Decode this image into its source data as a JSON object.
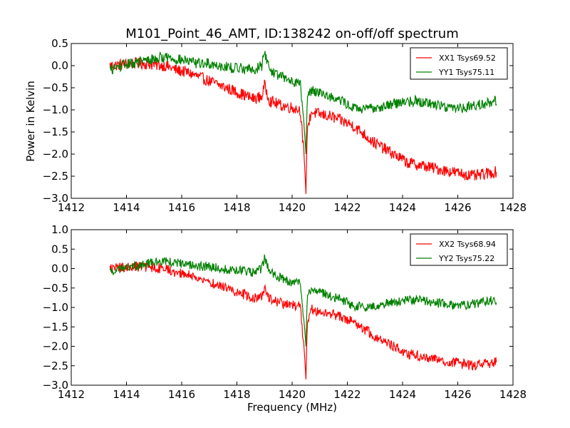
{
  "figure": {
    "title": "M101_Point_46_AMT, ID:138242 on-off/off spectrum",
    "xlabel": "Frequency (MHz)",
    "ylabel": "Power in Kelvin"
  },
  "colors": {
    "red": "#ff0000",
    "green": "#008000",
    "axes": "#000000"
  },
  "chart_data": [
    {
      "type": "line",
      "title": "M101_Point_46_AMT, ID:138242 on-off/off spectrum",
      "xlabel": "",
      "ylabel": "Power in Kelvin",
      "xlim": [
        1412,
        1428
      ],
      "ylim": [
        -3.0,
        0.5
      ],
      "xticks": [
        1412,
        1414,
        1416,
        1418,
        1420,
        1422,
        1424,
        1426,
        1428
      ],
      "yticks": [
        0.5,
        0.0,
        -0.5,
        -1.0,
        -1.5,
        -2.0,
        -2.5,
        -3.0
      ],
      "xtick_labels": [
        "1412",
        "1414",
        "1416",
        "1418",
        "1420",
        "1422",
        "1424",
        "1426",
        "1428"
      ],
      "ytick_labels": [
        "0.5",
        "0.0",
        "−0.5",
        "−1.0",
        "−1.5",
        "−2.0",
        "−2.5",
        "−3.0"
      ],
      "grid": false,
      "legend_position": "top-right",
      "series": [
        {
          "name": "XX1 Tsys69.52",
          "color": "#ff0000",
          "x": [
            1413.4,
            1413.8,
            1414.2,
            1414.6,
            1415.0,
            1415.4,
            1415.8,
            1416.2,
            1416.6,
            1417.0,
            1417.4,
            1417.8,
            1418.2,
            1418.6,
            1418.9,
            1419.0,
            1419.2,
            1419.6,
            1420.0,
            1420.3,
            1420.45,
            1420.5,
            1420.55,
            1420.7,
            1421.0,
            1421.4,
            1421.8,
            1422.2,
            1422.6,
            1423.0,
            1423.4,
            1423.8,
            1424.2,
            1424.6,
            1425.0,
            1425.4,
            1425.8,
            1426.2,
            1426.6,
            1427.0,
            1427.4
          ],
          "y": [
            0.0,
            0.02,
            0.05,
            0.05,
            0.02,
            0.0,
            -0.1,
            -0.15,
            -0.25,
            -0.35,
            -0.45,
            -0.55,
            -0.65,
            -0.75,
            -0.7,
            -0.45,
            -0.8,
            -0.9,
            -0.95,
            -1.0,
            -2.2,
            -2.9,
            -1.4,
            -1.05,
            -1.1,
            -1.15,
            -1.25,
            -1.35,
            -1.55,
            -1.75,
            -1.9,
            -2.05,
            -2.2,
            -2.25,
            -2.3,
            -2.35,
            -2.4,
            -2.45,
            -2.5,
            -2.45,
            -2.4
          ]
        },
        {
          "name": "YY1 Tsys75.11",
          "color": "#008000",
          "x": [
            1413.4,
            1413.8,
            1414.2,
            1414.6,
            1415.0,
            1415.4,
            1415.8,
            1416.2,
            1416.6,
            1417.0,
            1417.4,
            1417.8,
            1418.2,
            1418.6,
            1418.9,
            1419.0,
            1419.2,
            1419.6,
            1420.0,
            1420.3,
            1420.45,
            1420.5,
            1420.55,
            1420.7,
            1421.0,
            1421.4,
            1421.8,
            1422.2,
            1422.6,
            1423.0,
            1423.4,
            1423.8,
            1424.2,
            1424.6,
            1425.0,
            1425.4,
            1425.8,
            1426.2,
            1426.6,
            1427.0,
            1427.4
          ],
          "y": [
            -0.1,
            0.0,
            0.05,
            0.1,
            0.15,
            0.2,
            0.15,
            0.1,
            0.05,
            0.05,
            0.0,
            -0.05,
            -0.05,
            -0.1,
            0.0,
            0.3,
            -0.1,
            -0.25,
            -0.35,
            -0.4,
            -1.5,
            -2.0,
            -0.7,
            -0.55,
            -0.6,
            -0.7,
            -0.8,
            -0.95,
            -1.0,
            -0.95,
            -0.9,
            -0.85,
            -0.8,
            -0.8,
            -0.85,
            -0.9,
            -0.95,
            -0.95,
            -0.9,
            -0.85,
            -0.8
          ]
        }
      ]
    },
    {
      "type": "line",
      "title": "",
      "xlabel": "Frequency (MHz)",
      "ylabel": "",
      "xlim": [
        1412,
        1428
      ],
      "ylim": [
        -3.0,
        1.0
      ],
      "xticks": [
        1412,
        1414,
        1416,
        1418,
        1420,
        1422,
        1424,
        1426,
        1428
      ],
      "yticks": [
        1.0,
        0.5,
        0.0,
        -0.5,
        -1.0,
        -1.5,
        -2.0,
        -2.5,
        -3.0
      ],
      "xtick_labels": [
        "1412",
        "1414",
        "1416",
        "1418",
        "1420",
        "1422",
        "1424",
        "1426",
        "1428"
      ],
      "ytick_labels": [
        "1.0",
        "0.5",
        "0.0",
        "−0.5",
        "−1.0",
        "−1.5",
        "−2.0",
        "−2.5",
        "−3.0"
      ],
      "grid": false,
      "legend_position": "top-right",
      "series": [
        {
          "name": "XX2 Tsys68.94",
          "color": "#ff0000",
          "x": [
            1413.4,
            1413.8,
            1414.2,
            1414.6,
            1415.0,
            1415.4,
            1415.8,
            1416.2,
            1416.6,
            1417.0,
            1417.4,
            1417.8,
            1418.2,
            1418.6,
            1418.9,
            1419.0,
            1419.2,
            1419.6,
            1420.0,
            1420.3,
            1420.45,
            1420.5,
            1420.55,
            1420.7,
            1421.0,
            1421.4,
            1421.8,
            1422.2,
            1422.6,
            1423.0,
            1423.4,
            1423.8,
            1424.2,
            1424.6,
            1425.0,
            1425.4,
            1425.8,
            1426.2,
            1426.6,
            1427.0,
            1427.4
          ],
          "y": [
            0.0,
            0.02,
            0.05,
            0.05,
            0.02,
            0.0,
            -0.1,
            -0.15,
            -0.25,
            -0.35,
            -0.45,
            -0.55,
            -0.65,
            -0.75,
            -0.7,
            -0.45,
            -0.8,
            -0.9,
            -0.95,
            -1.0,
            -2.2,
            -2.85,
            -1.4,
            -1.05,
            -1.1,
            -1.15,
            -1.25,
            -1.35,
            -1.55,
            -1.75,
            -1.9,
            -2.05,
            -2.2,
            -2.25,
            -2.3,
            -2.35,
            -2.4,
            -2.45,
            -2.5,
            -2.45,
            -2.4
          ]
        },
        {
          "name": "YY2 Tsys75.22",
          "color": "#008000",
          "x": [
            1413.4,
            1413.8,
            1414.2,
            1414.6,
            1415.0,
            1415.4,
            1415.8,
            1416.2,
            1416.6,
            1417.0,
            1417.4,
            1417.8,
            1418.2,
            1418.6,
            1418.9,
            1419.0,
            1419.2,
            1419.6,
            1420.0,
            1420.3,
            1420.45,
            1420.5,
            1420.55,
            1420.7,
            1421.0,
            1421.4,
            1421.8,
            1422.2,
            1422.6,
            1423.0,
            1423.4,
            1423.8,
            1424.2,
            1424.6,
            1425.0,
            1425.4,
            1425.8,
            1426.2,
            1426.6,
            1427.0,
            1427.4
          ],
          "y": [
            -0.1,
            0.0,
            0.05,
            0.1,
            0.15,
            0.2,
            0.15,
            0.1,
            0.05,
            0.05,
            0.0,
            -0.05,
            -0.05,
            -0.1,
            0.0,
            0.3,
            -0.1,
            -0.25,
            -0.35,
            -0.4,
            -1.5,
            -2.0,
            -0.7,
            -0.55,
            -0.6,
            -0.7,
            -0.8,
            -0.95,
            -1.0,
            -0.95,
            -0.9,
            -0.85,
            -0.8,
            -0.8,
            -0.85,
            -0.9,
            -0.95,
            -0.95,
            -0.9,
            -0.85,
            -0.8
          ]
        }
      ]
    }
  ]
}
